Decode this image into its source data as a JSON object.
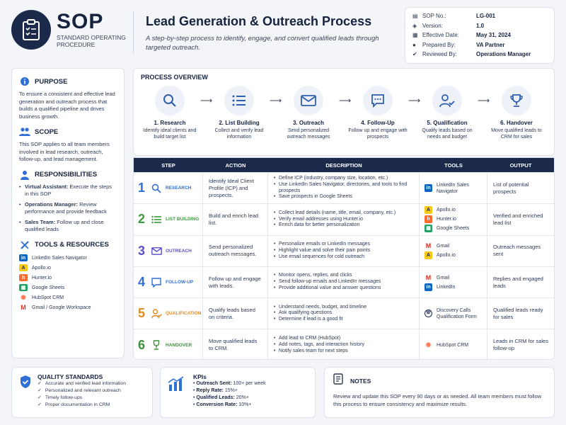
{
  "header": {
    "logo_text": "SOP",
    "logo_sub": "STANDARD OPERATING PROCEDURE",
    "title": "Lead Generation & Outreach Process",
    "subtitle": "A step-by-step process to identify, engage, and convert qualified leads through targeted outreach."
  },
  "meta": [
    {
      "icon": "document-icon",
      "label": "SOP No.:",
      "value": "LG-001"
    },
    {
      "icon": "layers-icon",
      "label": "Version:",
      "value": "1.0"
    },
    {
      "icon": "calendar-icon",
      "label": "Effective Date:",
      "value": "May 31, 2024"
    },
    {
      "icon": "user-icon",
      "label": "Prepared By:",
      "value": "VA Partner"
    },
    {
      "icon": "user-check-icon",
      "label": "Reviewed By:",
      "value": "Operations Manager"
    }
  ],
  "left": {
    "purpose_title": "PURPOSE",
    "purpose_text": "To ensure a consistent and effective lead generation and outreach process that builds a qualified pipeline and drives business growth.",
    "scope_title": "SCOPE",
    "scope_text": "This SOP applies to all team members involved in lead research, outreach, follow-up, and lead management.",
    "resp_title": "RESPONSIBILITIES",
    "responsibilities": [
      {
        "role": "Virtual Assistant:",
        "text": " Execute the steps in this SOP"
      },
      {
        "role": "Operations Manager:",
        "text": " Review performance and provide feedback"
      },
      {
        "role": "Sales Team:",
        "text": " Follow up and close qualified leads"
      }
    ],
    "tools_title": "TOOLS & RESOURCES",
    "tools": [
      "LinkedIn Sales Navigator",
      "Apollo.io",
      "Hunter.io",
      "Google Sheets",
      "HubSpot CRM",
      "Gmail / Google Workspace"
    ]
  },
  "overview": {
    "title": "PROCESS OVERVIEW",
    "steps": [
      {
        "title": "1. Research",
        "desc": "Identify ideal clients and build target list"
      },
      {
        "title": "2. List Building",
        "desc": "Collect and verify lead information"
      },
      {
        "title": "3. Outreach",
        "desc": "Send personalized outreach messages"
      },
      {
        "title": "4. Follow-Up",
        "desc": "Follow up and engage with prospects"
      },
      {
        "title": "5. Qualification",
        "desc": "Qualify leads based on needs and budget"
      },
      {
        "title": "6. Handover",
        "desc": "Move qualified leads to CRM for sales"
      }
    ]
  },
  "table": {
    "headers": [
      "STEP",
      "ACTION",
      "DESCRIPTION",
      "TOOLS",
      "OUTPUT"
    ],
    "rows": [
      {
        "num": "1",
        "name": "RESEARCH",
        "color": "#2f6fd6",
        "action": "Identify Ideal Client Profile (ICP) and prospects.",
        "desc": [
          "Define ICP (industry, company size, location, etc.)",
          "Use LinkedIn Sales Navigator, directories, and tools to find prospects",
          "Save prospects in Google Sheets"
        ],
        "tools": [
          "LinkedIn Sales Navigator"
        ],
        "output": "List of potential prospects"
      },
      {
        "num": "2",
        "name": "LIST BUILDING",
        "color": "#3d9a3d",
        "action": "Build and enrich lead list.",
        "desc": [
          "Collect lead details (name, title, email, company, etc.)",
          "Verify email addresses using Hunter.io",
          "Enrich data for better personalization"
        ],
        "tools": [
          "Apollo.io",
          "Hunter.io",
          "Google Sheets"
        ],
        "output": "Verified and enriched lead list"
      },
      {
        "num": "3",
        "name": "OUTREACH",
        "color": "#5b4fc7",
        "action": "Send personalized outreach messages.",
        "desc": [
          "Personalize emails or LinkedIn messages",
          "Highlight value and solve their pain points",
          "Use email sequences for cold outreach"
        ],
        "tools": [
          "Gmail",
          "Apollo.io"
        ],
        "output": "Outreach messages sent"
      },
      {
        "num": "4",
        "name": "FOLLOW-UP",
        "color": "#2f6fd6",
        "action": "Follow up and engage with leads.",
        "desc": [
          "Monitor opens, replies, and clicks",
          "Send follow-up emails and LinkedIn messages",
          "Provide additional value and answer questions"
        ],
        "tools": [
          "Gmail",
          "LinkedIn"
        ],
        "output": "Replies and engaged leads"
      },
      {
        "num": "5",
        "name": "QUALIFICATION",
        "color": "#e08a1e",
        "action": "Qualify leads based on criteria.",
        "desc": [
          "Understand needs, budget, and timeline",
          "Ask qualifying questions",
          "Determine if lead is a good fit"
        ],
        "tools": [
          "Discovery Calls Qualification Form"
        ],
        "output": "Qualified leads ready for sales"
      },
      {
        "num": "6",
        "name": "HANDOVER",
        "color": "#3d8f3d",
        "action": "Move qualified leads to CRM.",
        "desc": [
          "Add lead to CRM (HubSpot)",
          "Add notes, tags, and interaction history",
          "Notify sales team for next steps"
        ],
        "tools": [
          "HubSpot CRM"
        ],
        "output": "Leads in CRM for sales follow-up"
      }
    ]
  },
  "quality": {
    "title": "QUALITY STANDARDS",
    "items": [
      "Accurate and verified lead information",
      "Personalized and relevant outreach",
      "Timely follow-ups",
      "Proper documentation in CRM"
    ]
  },
  "kpis": {
    "title": "KPIs",
    "items": [
      {
        "k": "Outreach Sent:",
        "v": " 100+ per week"
      },
      {
        "k": "Reply Rate:",
        "v": " 15%+"
      },
      {
        "k": "Qualified Leads:",
        "v": " 20%+"
      },
      {
        "k": "Conversion Rate:",
        "v": " 10%+"
      }
    ]
  },
  "notes": {
    "title": "NOTES",
    "text": "Review and update this SOP every 90 days or as needed. All team members must follow this process to ensure consistency and maximize results."
  }
}
